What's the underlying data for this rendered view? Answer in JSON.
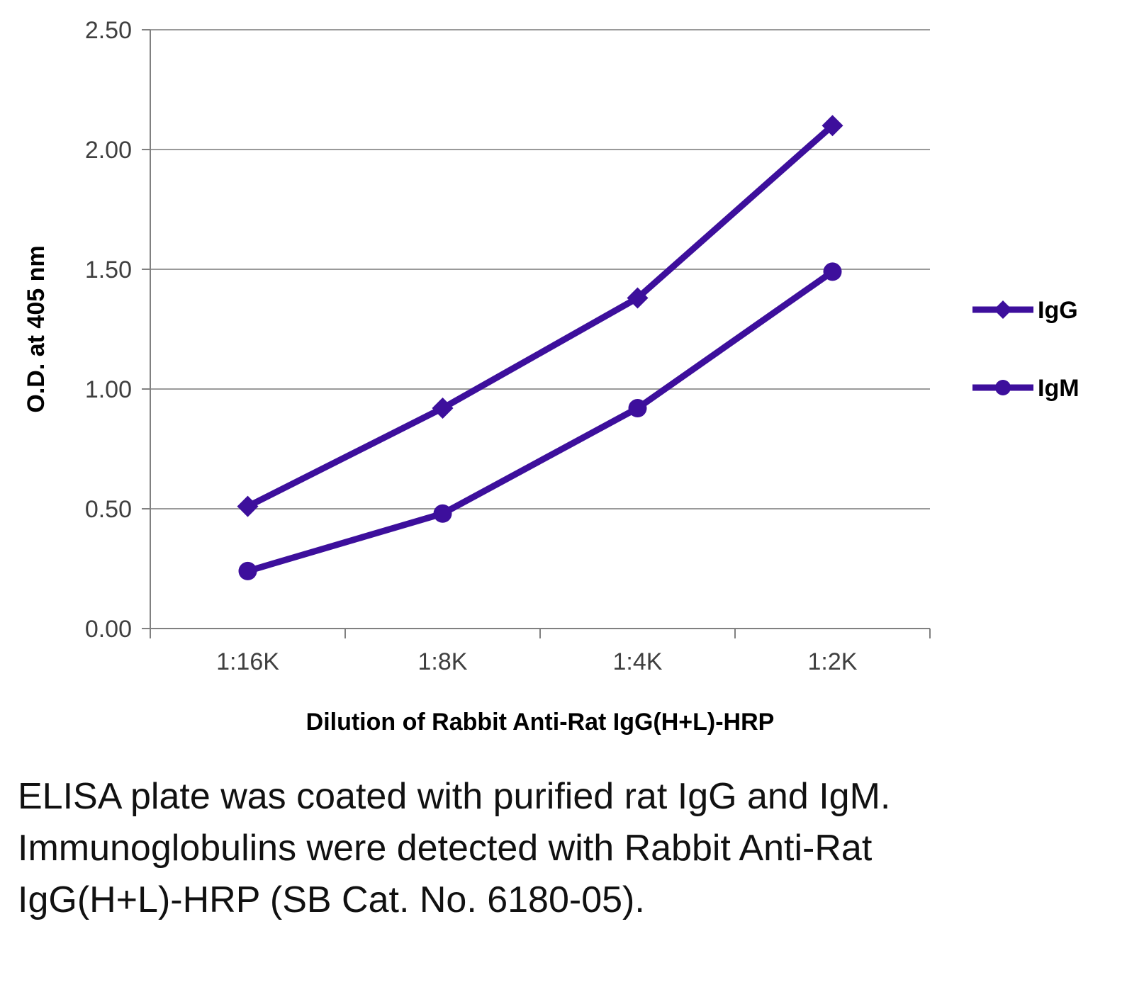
{
  "chart_data": {
    "type": "line",
    "x": [
      "1:16K",
      "1:8K",
      "1:4K",
      "1:2K"
    ],
    "series": [
      {
        "name": "IgG",
        "marker": "diamond",
        "values": [
          0.51,
          0.92,
          1.38,
          2.1
        ]
      },
      {
        "name": "IgM",
        "marker": "circle",
        "values": [
          0.24,
          0.48,
          0.92,
          1.49
        ]
      }
    ],
    "title": "",
    "xlabel": "Dilution of Rabbit Anti-Rat IgG(H+L)-HRP",
    "ylabel": "O.D. at 405 nm",
    "ylim": [
      0,
      2.5
    ],
    "ytick_step": 0.5,
    "ytick_labels": [
      "0.00",
      "0.50",
      "1.00",
      "1.50",
      "2.00",
      "2.50"
    ],
    "grid": "horizontal",
    "legend_position": "right",
    "line_color": "#3d0f9c",
    "grid_color": "#9a9a9a",
    "axis_color": "#808080",
    "tick_label_color": "#3f3f3f"
  },
  "caption": "ELISA plate was coated with purified rat IgG and IgM.  Immunoglobulins were detected with Rabbit Anti-Rat IgG(H+L)-HRP (SB Cat. No. 6180-05)."
}
